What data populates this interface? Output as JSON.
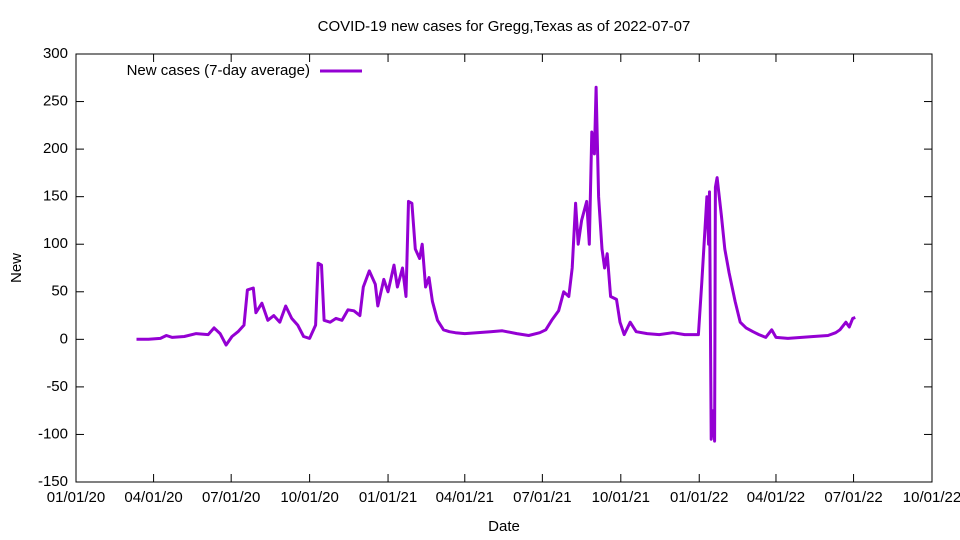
{
  "chart_data": {
    "type": "line",
    "title": "COVID-19 new cases for Gregg,Texas as of 2022-07-07",
    "x_label": "Date",
    "y_label": "New",
    "legend": "top-left",
    "xlim": [
      "2020-01-01",
      "2022-10-01"
    ],
    "xticks": [
      {
        "value": "2020-01-01",
        "label": "01/01/20"
      },
      {
        "value": "2020-04-01",
        "label": "04/01/20"
      },
      {
        "value": "2020-07-01",
        "label": "07/01/20"
      },
      {
        "value": "2020-10-01",
        "label": "10/01/20"
      },
      {
        "value": "2021-01-01",
        "label": "01/01/21"
      },
      {
        "value": "2021-04-01",
        "label": "04/01/21"
      },
      {
        "value": "2021-07-01",
        "label": "07/01/21"
      },
      {
        "value": "2021-10-01",
        "label": "10/01/21"
      },
      {
        "value": "2022-01-01",
        "label": "01/01/22"
      },
      {
        "value": "2022-04-01",
        "label": "04/01/22"
      },
      {
        "value": "2022-07-01",
        "label": "07/01/22"
      },
      {
        "value": "2022-10-01",
        "label": "10/01/22"
      }
    ],
    "ylim": [
      -150,
      300
    ],
    "yticks": [
      -150,
      -100,
      -50,
      0,
      50,
      100,
      150,
      200,
      250,
      300
    ],
    "x": [
      "2020-03-12",
      "2020-03-26",
      "2020-04-09",
      "2020-04-16",
      "2020-04-23",
      "2020-05-07",
      "2020-05-21",
      "2020-06-04",
      "2020-06-11",
      "2020-06-18",
      "2020-06-25",
      "2020-07-02",
      "2020-07-09",
      "2020-07-16",
      "2020-07-20",
      "2020-07-27",
      "2020-07-30",
      "2020-08-06",
      "2020-08-13",
      "2020-08-20",
      "2020-08-27",
      "2020-09-03",
      "2020-09-10",
      "2020-09-17",
      "2020-09-24",
      "2020-10-01",
      "2020-10-08",
      "2020-10-11",
      "2020-10-15",
      "2020-10-18",
      "2020-10-25",
      "2020-11-01",
      "2020-11-08",
      "2020-11-15",
      "2020-11-22",
      "2020-11-29",
      "2020-12-03",
      "2020-12-10",
      "2020-12-17",
      "2020-12-20",
      "2020-12-27",
      "2021-01-01",
      "2021-01-08",
      "2021-01-12",
      "2021-01-18",
      "2021-01-22",
      "2021-01-25",
      "2021-01-29",
      "2021-02-02",
      "2021-02-07",
      "2021-02-10",
      "2021-02-14",
      "2021-02-18",
      "2021-02-22",
      "2021-02-28",
      "2021-03-07",
      "2021-03-14",
      "2021-03-21",
      "2021-04-01",
      "2021-04-15",
      "2021-05-01",
      "2021-05-15",
      "2021-06-01",
      "2021-06-15",
      "2021-06-28",
      "2021-07-05",
      "2021-07-12",
      "2021-07-20",
      "2021-07-26",
      "2021-08-01",
      "2021-08-05",
      "2021-08-09",
      "2021-08-12",
      "2021-08-16",
      "2021-08-22",
      "2021-08-25",
      "2021-08-28",
      "2021-08-31",
      "2021-09-02",
      "2021-09-05",
      "2021-09-09",
      "2021-09-12",
      "2021-09-15",
      "2021-09-19",
      "2021-09-26",
      "2021-09-30",
      "2021-10-05",
      "2021-10-12",
      "2021-10-19",
      "2021-11-01",
      "2021-11-15",
      "2021-12-01",
      "2021-12-15",
      "2021-12-31",
      "2022-01-04",
      "2022-01-10",
      "2022-01-12",
      "2022-01-13",
      "2022-01-15",
      "2022-01-17",
      "2022-01-19",
      "2022-01-20",
      "2022-01-22",
      "2022-01-27",
      "2022-01-31",
      "2022-02-05",
      "2022-02-12",
      "2022-02-18",
      "2022-02-25",
      "2022-03-05",
      "2022-03-12",
      "2022-03-20",
      "2022-03-27",
      "2022-04-01",
      "2022-04-15",
      "2022-05-01",
      "2022-05-15",
      "2022-06-01",
      "2022-06-10",
      "2022-06-15",
      "2022-06-22",
      "2022-06-26",
      "2022-06-30",
      "2022-07-03"
    ],
    "series": [
      {
        "name": "New cases (7-day average)",
        "color": "#9400d3",
        "values": [
          0,
          0,
          1,
          4,
          2,
          3,
          6,
          5,
          12,
          6,
          -6,
          3,
          8,
          15,
          52,
          54,
          28,
          38,
          20,
          25,
          18,
          35,
          22,
          15,
          3,
          1,
          15,
          80,
          78,
          20,
          18,
          22,
          20,
          31,
          30,
          25,
          55,
          72,
          58,
          35,
          63,
          50,
          78,
          55,
          75,
          45,
          145,
          143,
          95,
          85,
          100,
          55,
          65,
          40,
          20,
          10,
          8,
          7,
          6,
          7,
          8,
          9,
          6,
          4,
          7,
          10,
          20,
          30,
          50,
          45,
          75,
          143,
          100,
          125,
          145,
          100,
          218,
          195,
          265,
          150,
          95,
          75,
          90,
          45,
          42,
          18,
          5,
          18,
          8,
          6,
          5,
          7,
          5,
          5,
          60,
          150,
          100,
          155,
          -105,
          -75,
          -107,
          160,
          170,
          130,
          95,
          70,
          40,
          18,
          12,
          8,
          5,
          2,
          10,
          2,
          1,
          2,
          3,
          4,
          7,
          10,
          18,
          13,
          22,
          23
        ]
      }
    ]
  }
}
